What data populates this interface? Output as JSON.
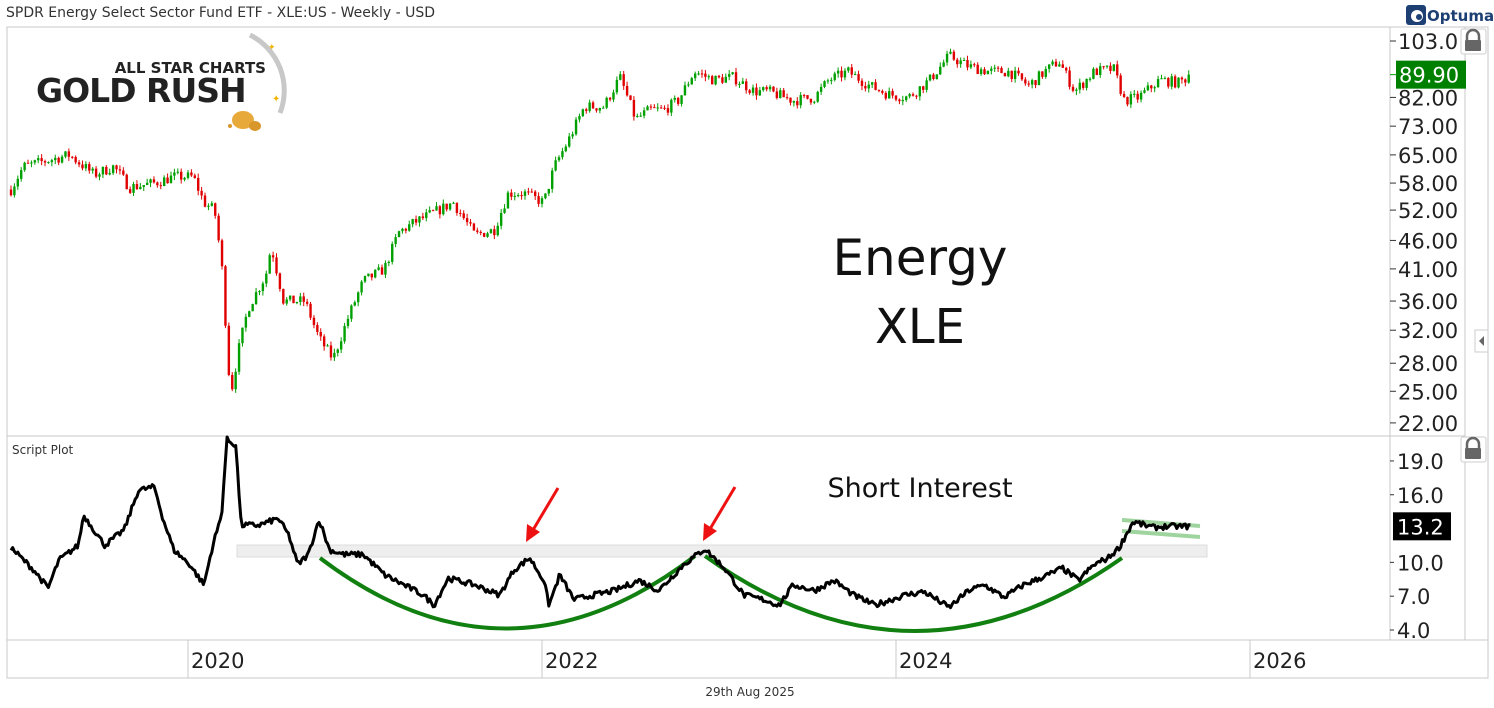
{
  "header": {
    "title": "SPDR Energy Select Sector Fund ETF - XLE:US - Weekly - USD",
    "brand": "Optuma"
  },
  "logo": {
    "line1": "ALL STAR CHARTS",
    "line2": "GOLD RUSH"
  },
  "footer": {
    "date": "29th Aug 2025"
  },
  "colors": {
    "up": "#00a000",
    "down": "#e00000",
    "last_price_bg": "#008000",
    "last_si_bg": "#000000",
    "arc": "#118011",
    "arrow": "#ee1111",
    "band": "#eeeeee"
  },
  "chart_data": [
    {
      "type": "candlestick",
      "title": "Weekly XLE price",
      "annotation_lines": [
        "Energy",
        "XLE"
      ],
      "yscale": "log",
      "ylim": [
        22,
        103
      ],
      "y_ticks": [
        "103.0",
        "82.00",
        "73.00",
        "65.00",
        "58.00",
        "52.00",
        "46.00",
        "41.00",
        "36.00",
        "32.00",
        "28.00",
        "25.00",
        "22.00"
      ],
      "last_value": "89.90",
      "approx_close_path": [
        [
          2019.0,
          56.5
        ],
        [
          2019.07,
          62
        ],
        [
          2019.33,
          65
        ],
        [
          2019.47,
          60
        ],
        [
          2019.58,
          62
        ],
        [
          2019.67,
          57
        ],
        [
          2019.81,
          58
        ],
        [
          2019.92,
          59.5
        ],
        [
          2020.03,
          59.5
        ],
        [
          2020.09,
          53.6
        ],
        [
          2020.15,
          52
        ],
        [
          2020.19,
          42
        ],
        [
          2020.24,
          24.5
        ],
        [
          2020.29,
          30
        ],
        [
          2020.34,
          35
        ],
        [
          2020.44,
          40
        ],
        [
          2020.47,
          45
        ],
        [
          2020.54,
          36
        ],
        [
          2020.66,
          36
        ],
        [
          2020.74,
          31
        ],
        [
          2020.82,
          28.5
        ],
        [
          2020.91,
          34
        ],
        [
          2020.99,
          39
        ],
        [
          2021.11,
          41
        ],
        [
          2021.19,
          47.5
        ],
        [
          2021.28,
          49.5
        ],
        [
          2021.39,
          51.5
        ],
        [
          2021.5,
          53.6
        ],
        [
          2021.62,
          47
        ],
        [
          2021.73,
          48
        ],
        [
          2021.81,
          55.7
        ],
        [
          2021.9,
          55.7
        ],
        [
          2022.01,
          53.6
        ],
        [
          2022.07,
          62
        ],
        [
          2022.15,
          69
        ],
        [
          2022.24,
          79
        ],
        [
          2022.35,
          79
        ],
        [
          2022.44,
          89
        ],
        [
          2022.53,
          75
        ],
        [
          2022.61,
          78
        ],
        [
          2022.69,
          78
        ],
        [
          2022.77,
          81
        ],
        [
          2022.86,
          91
        ],
        [
          2022.97,
          88
        ],
        [
          2023.08,
          89
        ],
        [
          2023.2,
          84
        ],
        [
          2023.28,
          84
        ],
        [
          2023.42,
          81
        ],
        [
          2023.54,
          82
        ],
        [
          2023.62,
          88
        ],
        [
          2023.73,
          91
        ],
        [
          2023.85,
          86
        ],
        [
          2023.96,
          83
        ],
        [
          2024.07,
          82
        ],
        [
          2024.19,
          88
        ],
        [
          2024.3,
          97
        ],
        [
          2024.41,
          93
        ],
        [
          2024.53,
          91
        ],
        [
          2024.64,
          91
        ],
        [
          2024.75,
          86
        ],
        [
          2024.84,
          91
        ],
        [
          2024.92,
          95
        ],
        [
          2025.01,
          84
        ],
        [
          2025.12,
          91
        ],
        [
          2025.23,
          92
        ],
        [
          2025.29,
          81
        ],
        [
          2025.37,
          82
        ],
        [
          2025.49,
          88
        ],
        [
          2025.6,
          87
        ],
        [
          2025.67,
          89.9
        ]
      ]
    },
    {
      "type": "line",
      "panel_label": "Script Plot",
      "annotation": "Short Interest",
      "ylim": [
        4,
        19
      ],
      "y_ticks": [
        "19.0",
        "16.0",
        "10.0",
        "7.0",
        "4.0"
      ],
      "last_value": "13.2",
      "points": [
        [
          2019.0,
          11.3
        ],
        [
          2019.13,
          9.3
        ],
        [
          2019.21,
          7.7
        ],
        [
          2019.27,
          10.2
        ],
        [
          2019.38,
          11.5
        ],
        [
          2019.41,
          14.2
        ],
        [
          2019.53,
          11.5
        ],
        [
          2019.64,
          12.9
        ],
        [
          2019.72,
          16.4
        ],
        [
          2019.81,
          16.7
        ],
        [
          2019.86,
          13.8
        ],
        [
          2019.92,
          11.1
        ],
        [
          2020.01,
          9.8
        ],
        [
          2020.09,
          8.0
        ],
        [
          2020.14,
          11.5
        ],
        [
          2020.19,
          14.2
        ],
        [
          2020.22,
          20.9
        ],
        [
          2020.27,
          20.4
        ],
        [
          2020.3,
          13.3
        ],
        [
          2020.4,
          13.3
        ],
        [
          2020.51,
          13.9
        ],
        [
          2020.57,
          12.4
        ],
        [
          2020.62,
          9.8
        ],
        [
          2020.68,
          10.7
        ],
        [
          2020.74,
          13.8
        ],
        [
          2020.8,
          11.1
        ],
        [
          2020.88,
          10.7
        ],
        [
          2020.99,
          10.7
        ],
        [
          2021.11,
          8.9
        ],
        [
          2021.22,
          8.0
        ],
        [
          2021.33,
          7.1
        ],
        [
          2021.39,
          6.2
        ],
        [
          2021.47,
          8.6
        ],
        [
          2021.62,
          8.0
        ],
        [
          2021.76,
          7.1
        ],
        [
          2021.84,
          9.3
        ],
        [
          2021.93,
          10.4
        ],
        [
          2022.01,
          8.4
        ],
        [
          2022.04,
          6.2
        ],
        [
          2022.1,
          8.9
        ],
        [
          2022.18,
          6.7
        ],
        [
          2022.29,
          7.1
        ],
        [
          2022.41,
          7.5
        ],
        [
          2022.55,
          8.4
        ],
        [
          2022.66,
          7.5
        ],
        [
          2022.8,
          9.8
        ],
        [
          2022.92,
          11.2
        ],
        [
          2023.03,
          9.5
        ],
        [
          2023.14,
          7.1
        ],
        [
          2023.25,
          6.7
        ],
        [
          2023.34,
          6.2
        ],
        [
          2023.42,
          8.0
        ],
        [
          2023.54,
          7.5
        ],
        [
          2023.65,
          8.4
        ],
        [
          2023.76,
          7.1
        ],
        [
          2023.88,
          6.2
        ],
        [
          2024.05,
          7.1
        ],
        [
          2024.16,
          7.4
        ],
        [
          2024.3,
          6.0
        ],
        [
          2024.41,
          7.5
        ],
        [
          2024.5,
          8.0
        ],
        [
          2024.61,
          6.9
        ],
        [
          2024.72,
          8.0
        ],
        [
          2024.86,
          8.9
        ],
        [
          2024.94,
          9.5
        ],
        [
          2025.03,
          8.4
        ],
        [
          2025.12,
          9.8
        ],
        [
          2025.2,
          10.4
        ],
        [
          2025.26,
          11.3
        ],
        [
          2025.34,
          13.6
        ],
        [
          2025.45,
          13.1
        ],
        [
          2025.54,
          13.2
        ],
        [
          2025.67,
          13.2
        ]
      ]
    }
  ],
  "x_axis": {
    "ticks": [
      "2020",
      "2022",
      "2024",
      "2026"
    ],
    "tick_years": [
      2020,
      2022,
      2024,
      2026
    ]
  }
}
